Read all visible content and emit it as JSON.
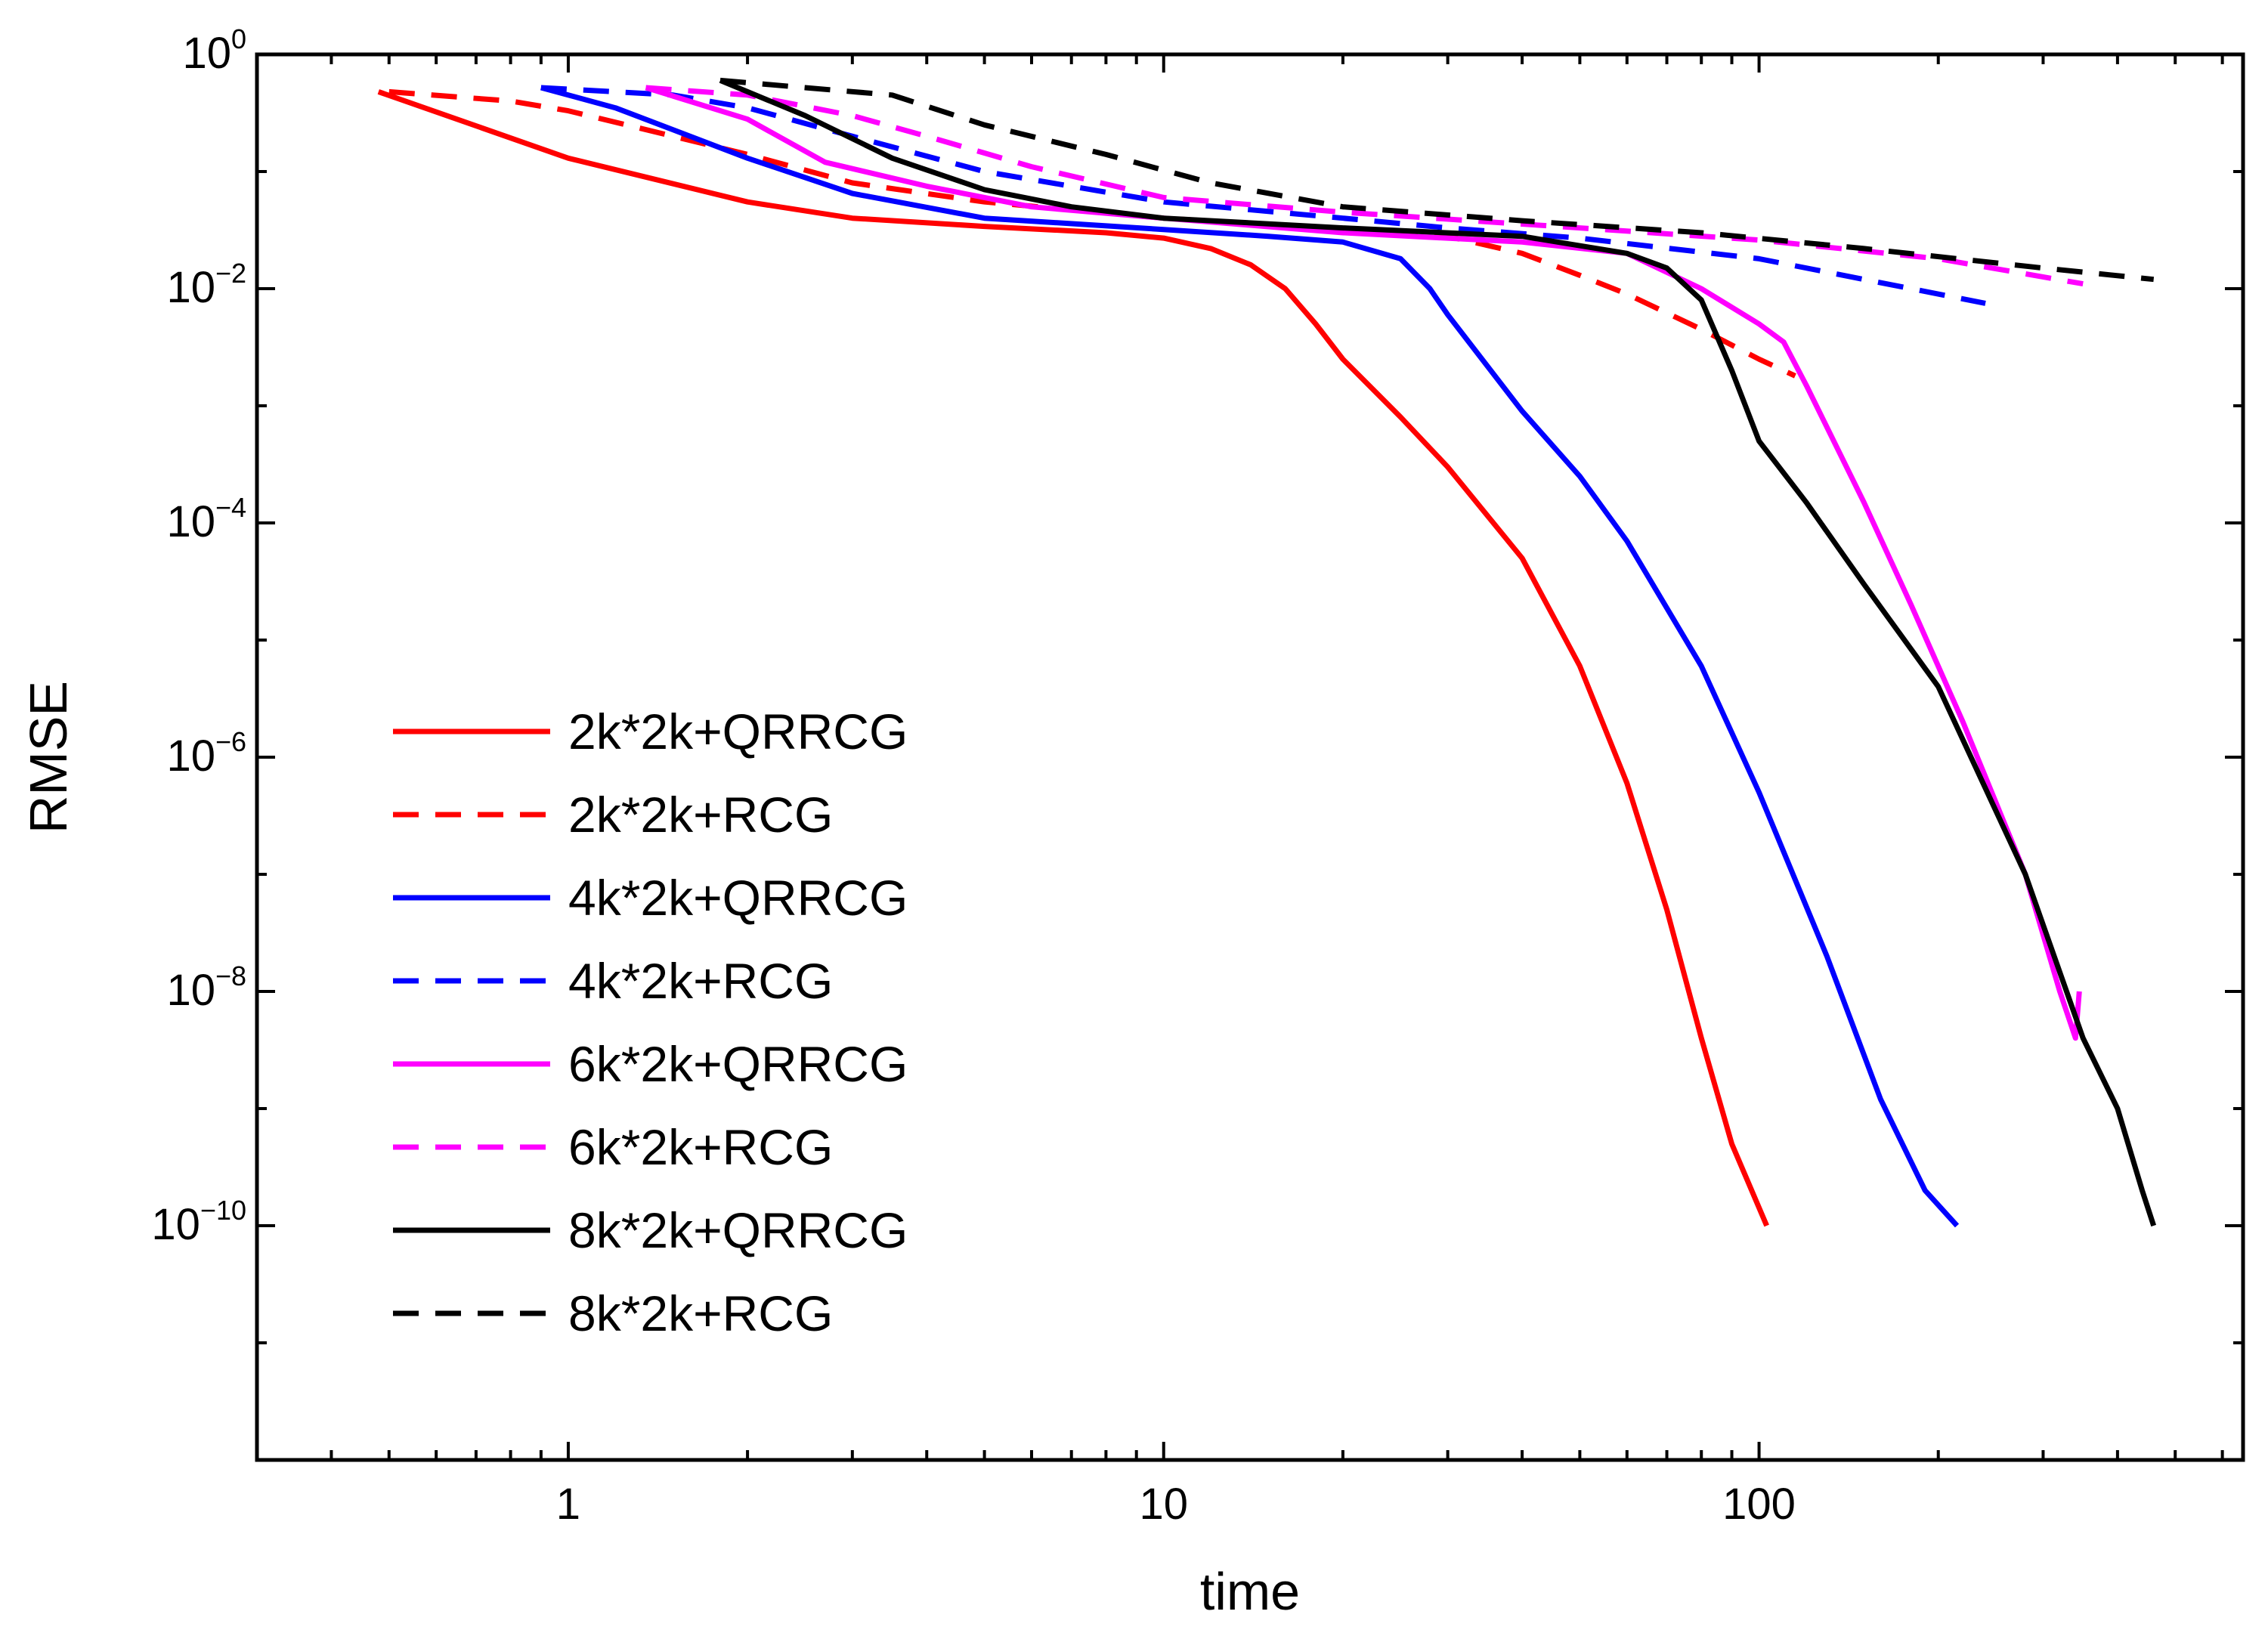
{
  "chart_data": {
    "type": "line",
    "xscale": "log",
    "yscale": "log",
    "xlabel": "time",
    "ylabel": "RMSE",
    "xlim": [
      0.3,
      650
    ],
    "ylim": [
      1e-12,
      1
    ],
    "x_ticks": [
      {
        "value": 1,
        "label": "1"
      },
      {
        "value": 10,
        "label": "10"
      },
      {
        "value": 100,
        "label": "100"
      }
    ],
    "y_ticks": [
      {
        "value": 1,
        "base": "10",
        "exp": "0"
      },
      {
        "value": 0.01,
        "base": "10",
        "exp": "−2"
      },
      {
        "value": 0.0001,
        "base": "10",
        "exp": "−4"
      },
      {
        "value": 1e-06,
        "base": "10",
        "exp": "−6"
      },
      {
        "value": 1e-08,
        "base": "10",
        "exp": "−8"
      },
      {
        "value": 1e-10,
        "base": "10",
        "exp": "−10"
      }
    ],
    "legend_position": "lower-left",
    "grid": false,
    "series": [
      {
        "name": "2k*2k+QRRCG",
        "color": "#ff0000",
        "dash": "solid",
        "points": [
          [
            0.48,
            0.48
          ],
          [
            1.0,
            0.13
          ],
          [
            2.0,
            0.055
          ],
          [
            3.0,
            0.04
          ],
          [
            5.0,
            0.034
          ],
          [
            8.0,
            0.03
          ],
          [
            10.0,
            0.027
          ],
          [
            12.0,
            0.022
          ],
          [
            14.0,
            0.016
          ],
          [
            16.0,
            0.01
          ],
          [
            18.0,
            0.005
          ],
          [
            20.0,
            0.0025
          ],
          [
            25.0,
            0.0008
          ],
          [
            30.0,
            0.0003
          ],
          [
            40.0,
            5e-05
          ],
          [
            50.0,
            6e-06
          ],
          [
            60.0,
            6e-07
          ],
          [
            70.0,
            5e-08
          ],
          [
            80.0,
            4e-09
          ],
          [
            90.0,
            5e-10
          ],
          [
            103.0,
            1e-10
          ]
        ]
      },
      {
        "name": "2k*2k+RCG",
        "color": "#ff0000",
        "dash": "dashed",
        "points": [
          [
            0.5,
            0.48
          ],
          [
            0.8,
            0.4
          ],
          [
            1.0,
            0.33
          ],
          [
            1.5,
            0.2
          ],
          [
            2.0,
            0.14
          ],
          [
            3.0,
            0.08
          ],
          [
            5.0,
            0.055
          ],
          [
            10.0,
            0.04
          ],
          [
            20.0,
            0.032
          ],
          [
            30.0,
            0.028
          ],
          [
            40.0,
            0.02
          ],
          [
            50.0,
            0.013
          ],
          [
            60.0,
            0.009
          ],
          [
            80.0,
            0.0045
          ],
          [
            100.0,
            0.0025
          ],
          [
            115.0,
            0.0018
          ]
        ]
      },
      {
        "name": "4k*2k+QRRCG",
        "color": "#0000ff",
        "dash": "solid",
        "points": [
          [
            0.9,
            0.52
          ],
          [
            1.2,
            0.35
          ],
          [
            2.0,
            0.13
          ],
          [
            3.0,
            0.065
          ],
          [
            5.0,
            0.04
          ],
          [
            10.0,
            0.032
          ],
          [
            15.0,
            0.028
          ],
          [
            20.0,
            0.025
          ],
          [
            25.0,
            0.018
          ],
          [
            28.0,
            0.01
          ],
          [
            30.0,
            0.006
          ],
          [
            40.0,
            0.0009
          ],
          [
            50.0,
            0.00025
          ],
          [
            60.0,
            7e-05
          ],
          [
            80.0,
            6e-06
          ],
          [
            100.0,
            5e-07
          ],
          [
            130.0,
            2e-08
          ],
          [
            160.0,
            1.2e-09
          ],
          [
            190.0,
            2e-10
          ],
          [
            215.0,
            1e-10
          ]
        ]
      },
      {
        "name": "4k*2k+RCG",
        "color": "#0000ff",
        "dash": "dashed",
        "points": [
          [
            0.9,
            0.52
          ],
          [
            1.5,
            0.45
          ],
          [
            2.0,
            0.35
          ],
          [
            3.0,
            0.2
          ],
          [
            5.0,
            0.1
          ],
          [
            10.0,
            0.055
          ],
          [
            20.0,
            0.04
          ],
          [
            30.0,
            0.033
          ],
          [
            50.0,
            0.027
          ],
          [
            100.0,
            0.018
          ],
          [
            150.0,
            0.012
          ],
          [
            240.0,
            0.0075
          ]
        ]
      },
      {
        "name": "6k*2k+QRRCG",
        "color": "#ff00ff",
        "dash": "solid",
        "points": [
          [
            1.35,
            0.52
          ],
          [
            2.0,
            0.28
          ],
          [
            2.7,
            0.12
          ],
          [
            4.0,
            0.075
          ],
          [
            6.0,
            0.05
          ],
          [
            10.0,
            0.04
          ],
          [
            20.0,
            0.03
          ],
          [
            40.0,
            0.025
          ],
          [
            60.0,
            0.02
          ],
          [
            80.0,
            0.01
          ],
          [
            100.0,
            0.005
          ],
          [
            110.0,
            0.0035
          ],
          [
            120.0,
            0.0015
          ],
          [
            150.0,
            0.00015
          ],
          [
            180.0,
            2e-05
          ],
          [
            220.0,
            2e-06
          ],
          [
            280.0,
            1e-07
          ],
          [
            320.0,
            1e-08
          ],
          [
            340.0,
            4e-09
          ],
          [
            345.0,
            1e-08
          ]
        ]
      },
      {
        "name": "6k*2k+RCG",
        "color": "#ff00ff",
        "dash": "dashed",
        "points": [
          [
            1.35,
            0.52
          ],
          [
            2.0,
            0.45
          ],
          [
            3.0,
            0.3
          ],
          [
            4.0,
            0.2
          ],
          [
            6.0,
            0.11
          ],
          [
            10.0,
            0.06
          ],
          [
            20.0,
            0.045
          ],
          [
            50.0,
            0.033
          ],
          [
            100.0,
            0.026
          ],
          [
            200.0,
            0.018
          ],
          [
            350.0,
            0.011
          ]
        ]
      },
      {
        "name": "8k*2k+QRRCG",
        "color": "#000000",
        "dash": "solid",
        "points": [
          [
            1.8,
            0.6
          ],
          [
            2.5,
            0.3
          ],
          [
            3.5,
            0.13
          ],
          [
            5.0,
            0.07
          ],
          [
            7.0,
            0.05
          ],
          [
            10.0,
            0.04
          ],
          [
            20.0,
            0.033
          ],
          [
            40.0,
            0.028
          ],
          [
            60.0,
            0.02
          ],
          [
            70.0,
            0.015
          ],
          [
            80.0,
            0.008
          ],
          [
            90.0,
            0.002
          ],
          [
            100.0,
            0.0005
          ],
          [
            120.0,
            0.00015
          ],
          [
            150.0,
            3e-05
          ],
          [
            200.0,
            4e-06
          ],
          [
            280.0,
            1e-07
          ],
          [
            350.0,
            4e-09
          ],
          [
            400.0,
            1e-09
          ],
          [
            440.0,
            2e-10
          ],
          [
            460.0,
            1e-10
          ]
        ]
      },
      {
        "name": "8k*2k+RCG",
        "color": "#000000",
        "dash": "dashed",
        "points": [
          [
            1.8,
            0.6
          ],
          [
            2.5,
            0.52
          ],
          [
            3.5,
            0.45
          ],
          [
            5.0,
            0.25
          ],
          [
            8.0,
            0.14
          ],
          [
            12.0,
            0.08
          ],
          [
            20.0,
            0.05
          ],
          [
            40.0,
            0.038
          ],
          [
            80.0,
            0.03
          ],
          [
            150.0,
            0.022
          ],
          [
            300.0,
            0.015
          ],
          [
            460.0,
            0.012
          ]
        ]
      }
    ]
  }
}
